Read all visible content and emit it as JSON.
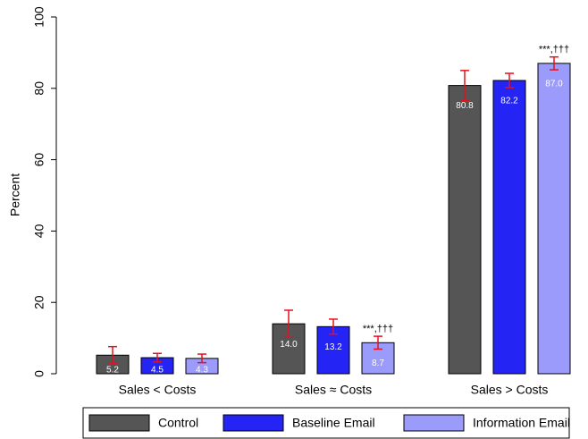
{
  "chart_data": {
    "type": "bar",
    "y_label": "Percent",
    "categories": [
      "Sales < Costs",
      "Sales ≈ Costs",
      "Sales > Costs"
    ],
    "series": [
      {
        "name": "Control",
        "color": "#555555",
        "values": [
          5.2,
          14.0,
          80.8
        ],
        "value_labels": [
          "5.2",
          "14.0",
          "80.8"
        ],
        "errors": [
          2.4,
          3.8,
          4.2
        ],
        "error_color": "#e8101c"
      },
      {
        "name": "Baseline Email",
        "color": "#2424f4",
        "values": [
          4.5,
          13.2,
          82.2
        ],
        "value_labels": [
          "4.5",
          "13.2",
          "82.2"
        ],
        "errors": [
          1.2,
          2.1,
          2.0
        ],
        "error_color": "#e8101c"
      },
      {
        "name": "Information Email",
        "color": "#9b9bfb",
        "values": [
          4.3,
          8.7,
          87.0
        ],
        "value_labels": [
          "4.3",
          "8.7",
          "87.0"
        ],
        "errors": [
          1.2,
          1.8,
          1.8
        ],
        "error_color": "#e8101c",
        "annotations": [
          null,
          "***,†††",
          "***,†††"
        ]
      }
    ],
    "ylim": [
      0,
      100
    ],
    "yticks": [
      0,
      20,
      40,
      60,
      80,
      100
    ],
    "grid": false,
    "legend": "bottom"
  }
}
